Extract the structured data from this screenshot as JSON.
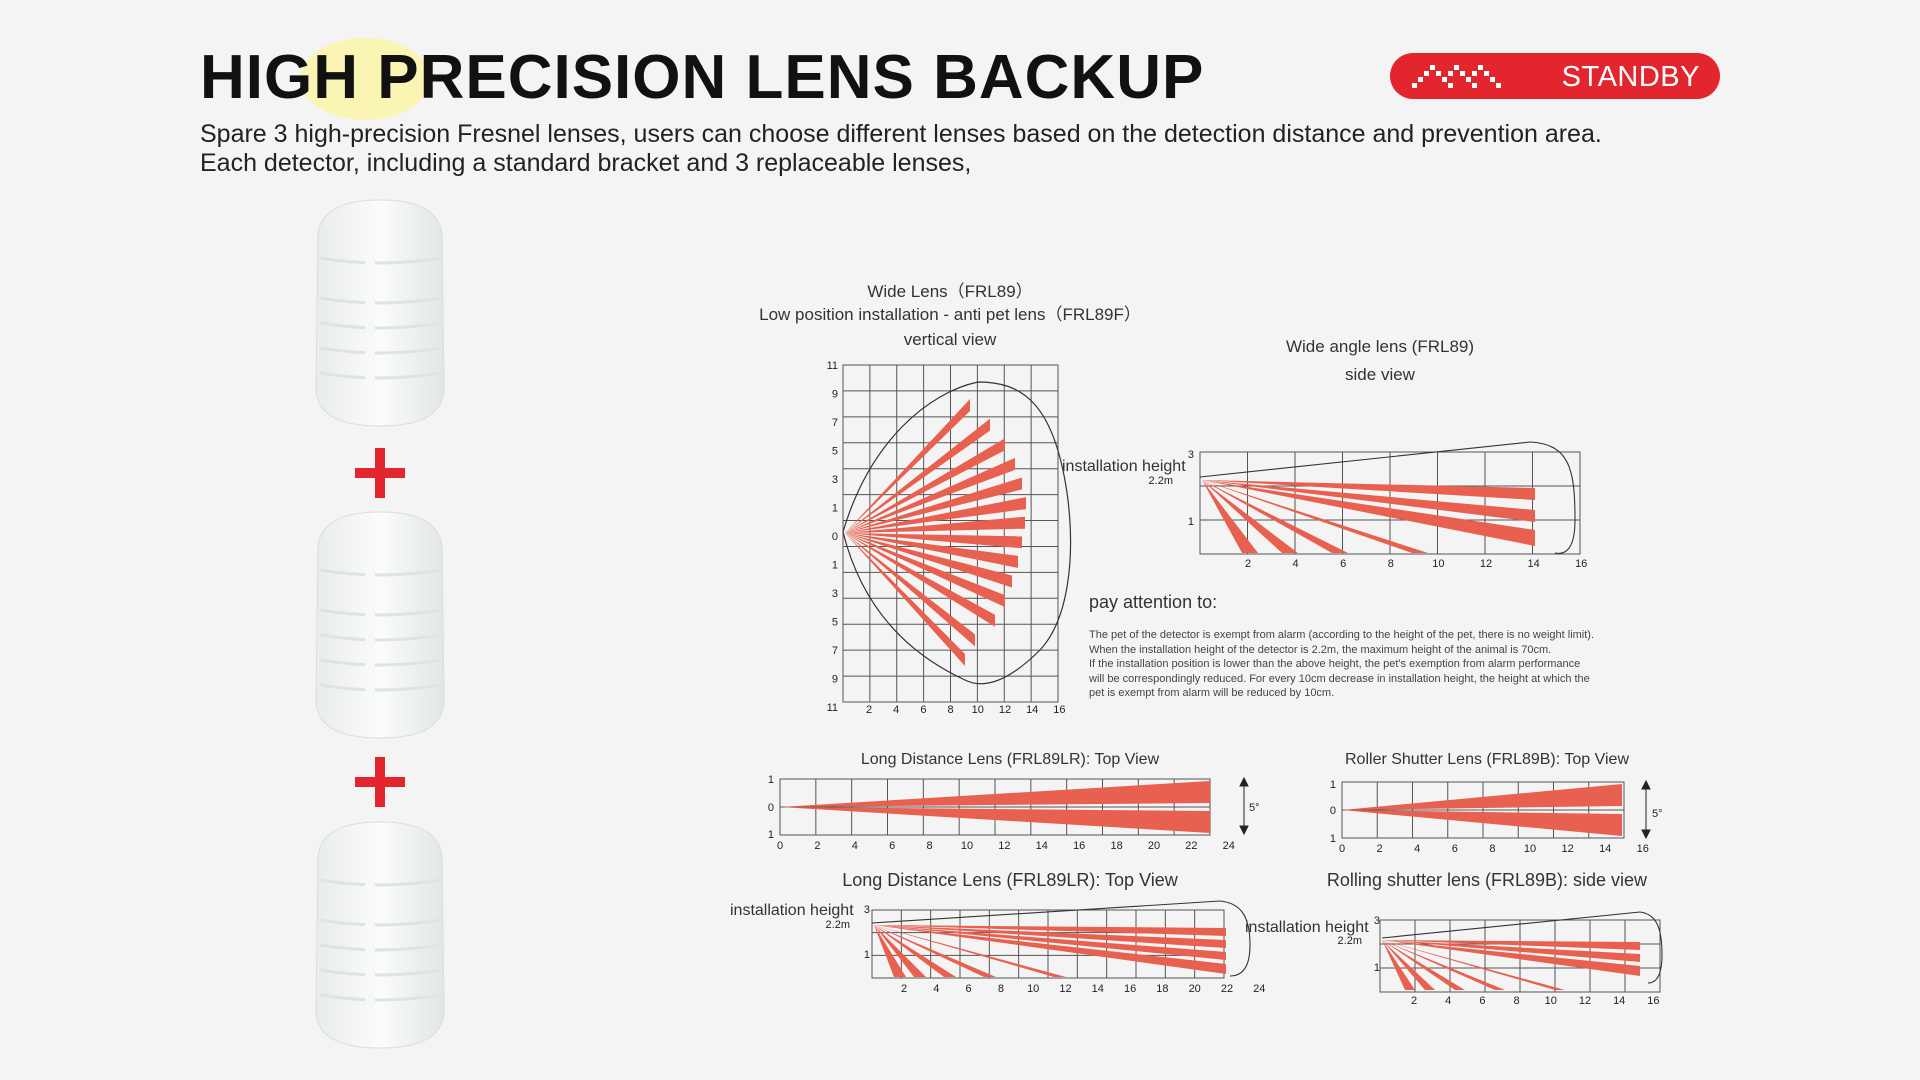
{
  "header": {
    "title": "HIGH PRECISION LENS BACKUP",
    "subtitle_line1": "Spare 3 high-precision Fresnel lenses, users can choose different lenses based on the detection distance and prevention area.",
    "subtitle_line2": "Each detector, including a standard bracket and 3 replaceable lenses,"
  },
  "brand": {
    "label": "STANDBY",
    "color": "#e3262d"
  },
  "colors": {
    "beam": "#e8604f",
    "grid": "#555555",
    "plus": "#e3262d"
  },
  "wide_vertical": {
    "title1": "Wide Lens（FRL89）",
    "title2": "Low position installation - anti pet lens（FRL89F）",
    "title3": "vertical view",
    "y_ticks": [
      "11",
      "9",
      "7",
      "5",
      "3",
      "1",
      "0",
      "1",
      "3",
      "5",
      "7",
      "9",
      "11"
    ],
    "x_ticks": [
      "2",
      "4",
      "6",
      "8",
      "10",
      "12",
      "14",
      "16"
    ]
  },
  "wide_side": {
    "title1": "Wide angle lens (FRL89)",
    "title2": "side view",
    "install_label": "installation height",
    "height_label": "2.2m",
    "y_ticks": [
      "3",
      "1"
    ],
    "x_ticks": [
      "2",
      "4",
      "6",
      "8",
      "10",
      "12",
      "14",
      "16"
    ]
  },
  "attention": {
    "title": "pay attention to:",
    "lines": [
      "The pet of the detector is exempt from alarm (according to the height of the pet, there is no weight limit).",
      "When the installation height of the detector is 2.2m, the maximum height of the animal is 70cm.",
      "If the installation position is lower than the above height, the pet's exemption from alarm performance",
      "will be correspondingly reduced. For every 10cm decrease in installation height, the height at which the",
      "pet is exempt from alarm will be reduced by 10cm."
    ]
  },
  "long_top": {
    "title": "Long Distance Lens (FRL89LR): Top View",
    "y_ticks": [
      "1",
      "0",
      "1"
    ],
    "x_ticks": [
      "0",
      "2",
      "4",
      "6",
      "8",
      "10",
      "12",
      "14",
      "16",
      "18",
      "20",
      "22",
      "24"
    ],
    "angle_label": "5°"
  },
  "roller_top": {
    "title": "Roller Shutter Lens (FRL89B): Top View",
    "y_ticks": [
      "1",
      "0",
      "1"
    ],
    "x_ticks": [
      "0",
      "2",
      "4",
      "6",
      "8",
      "10",
      "12",
      "14",
      "16"
    ],
    "angle_label": "5°"
  },
  "long_side": {
    "title": "Long Distance Lens (FRL89LR): Top View",
    "install_label": "installation height",
    "height_label": "2.2m",
    "y_ticks": [
      "3",
      "1"
    ],
    "x_ticks": [
      "2",
      "4",
      "6",
      "8",
      "10",
      "12",
      "14",
      "16",
      "18",
      "20",
      "22",
      "24"
    ]
  },
  "roller_side": {
    "title": "Rolling shutter lens (FRL89B): side view",
    "install_label": "installation height",
    "height_label": "2.2m",
    "y_ticks": [
      "3",
      "1"
    ],
    "x_ticks": [
      "2",
      "4",
      "6",
      "8",
      "10",
      "12",
      "14",
      "16"
    ]
  }
}
